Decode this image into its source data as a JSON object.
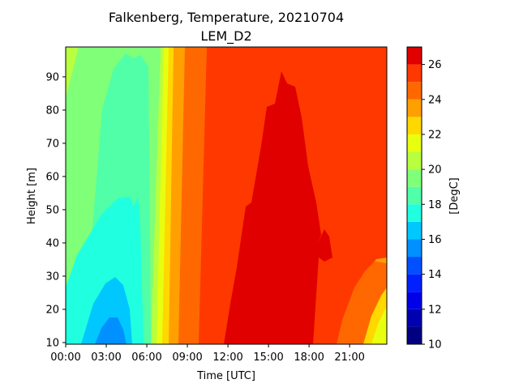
{
  "chart_data": {
    "type": "heatmap",
    "title": "Falkenberg, Temperature, 20210704",
    "subtitle": "LEM_D2",
    "xlabel": "Time [UTC]",
    "ylabel": "Height [m]",
    "colorbar_label": "[DegC]",
    "x_ticks": [
      "00:00",
      "03:00",
      "06:00",
      "09:00",
      "12:00",
      "15:00",
      "18:00",
      "21:00"
    ],
    "x_tick_hours": [
      0,
      3,
      6,
      9,
      12,
      15,
      18,
      21
    ],
    "xlim_hours": [
      0,
      23.75
    ],
    "y_ticks": [
      "10",
      "20",
      "30",
      "40",
      "50",
      "60",
      "70",
      "80",
      "90"
    ],
    "y_tick_values": [
      10,
      20,
      30,
      40,
      50,
      60,
      70,
      80,
      90
    ],
    "ylim": [
      9.5,
      99
    ],
    "colorbar_ticks": [
      "10",
      "12",
      "14",
      "16",
      "18",
      "20",
      "22",
      "24",
      "26"
    ],
    "colorbar_tick_values": [
      10,
      12,
      14,
      16,
      18,
      20,
      22,
      24,
      26
    ],
    "levels": [
      10,
      11,
      12,
      13,
      14,
      15,
      16,
      17,
      18,
      19,
      20,
      21,
      22,
      23,
      24,
      25,
      26,
      27
    ],
    "colors": [
      "#000080",
      "#0000b0",
      "#0000e8",
      "#0020ff",
      "#0050ff",
      "#0090ff",
      "#00c8ff",
      "#20ffe0",
      "#50ffa8",
      "#80ff78",
      "#b8ff40",
      "#e8ff10",
      "#ffd800",
      "#ffa000",
      "#ff6800",
      "#ff3800",
      "#e00000",
      "#a00000"
    ],
    "grid": false,
    "temperature_by_hour_at_10m": [
      {
        "hour": 0,
        "value": 17.0
      },
      {
        "hour": 2,
        "value": 15.5
      },
      {
        "hour": 3.5,
        "value": 14.5
      },
      {
        "hour": 5,
        "value": 15.5
      },
      {
        "hour": 6.5,
        "value": 18.5
      },
      {
        "hour": 8,
        "value": 22.0
      },
      {
        "hour": 10,
        "value": 24.5
      },
      {
        "hour": 12,
        "value": 25.5
      },
      {
        "hour": 15,
        "value": 25.8
      },
      {
        "hour": 18,
        "value": 25.5
      },
      {
        "hour": 20,
        "value": 24.0
      },
      {
        "hour": 22,
        "value": 22.0
      },
      {
        "hour": 23.75,
        "value": 20.5
      }
    ],
    "temperature_by_hour_at_90m": [
      {
        "hour": 0,
        "value": 19.5
      },
      {
        "hour": 3,
        "value": 18.5
      },
      {
        "hour": 6,
        "value": 18.5
      },
      {
        "hour": 8,
        "value": 21.5
      },
      {
        "hour": 10,
        "value": 23.5
      },
      {
        "hour": 12,
        "value": 24.5
      },
      {
        "hour": 15,
        "value": 25.2
      },
      {
        "hour": 18,
        "value": 24.8
      },
      {
        "hour": 21,
        "value": 24.5
      },
      {
        "hour": 23.75,
        "value": 23.5
      }
    ]
  }
}
